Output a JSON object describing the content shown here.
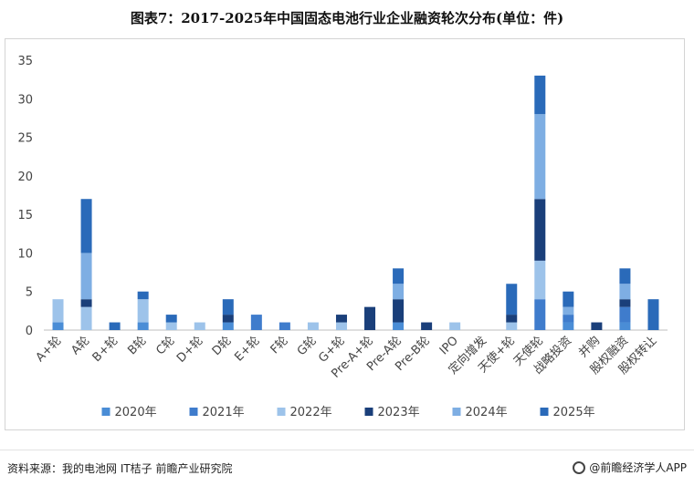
{
  "title": "图表7：2017-2025年中国固态电池行业企业融资轮次分布(单位：件)",
  "source": "资料来源：我的电池网 IT桔子 前瞻产业研究院",
  "brand": "@前瞻经济学人APP",
  "chart_data": {
    "type": "bar",
    "stacked": true,
    "categories": [
      "A+轮",
      "A轮",
      "B+轮",
      "B轮",
      "C轮",
      "D+轮",
      "D轮",
      "E+轮",
      "F轮",
      "G轮",
      "G+轮",
      "Pre-A+轮",
      "Pre-A轮",
      "Pre-B轮",
      "IPO",
      "定向增发",
      "天使+轮",
      "天使轮",
      "战略投资",
      "并购",
      "股权融资",
      "股权转让"
    ],
    "series": [
      {
        "name": "2020年",
        "color": "#4a8dd6",
        "values": [
          1,
          0,
          0,
          1,
          0,
          0,
          1,
          0,
          0,
          0,
          0,
          0,
          1,
          0,
          0,
          0,
          0,
          0,
          1,
          0,
          1,
          0
        ]
      },
      {
        "name": "2021年",
        "color": "#3f7ccc",
        "values": [
          0,
          0,
          0,
          0,
          0,
          0,
          0,
          2,
          1,
          0,
          0,
          0,
          0,
          0,
          0,
          0,
          0,
          4,
          1,
          0,
          2,
          0
        ]
      },
      {
        "name": "2022年",
        "color": "#9dc3ea",
        "values": [
          3,
          3,
          0,
          3,
          1,
          1,
          0,
          0,
          0,
          1,
          1,
          0,
          0,
          0,
          1,
          0,
          1,
          5,
          0,
          0,
          0,
          0
        ]
      },
      {
        "name": "2023年",
        "color": "#1a3f7a",
        "values": [
          0,
          1,
          0,
          0,
          0,
          0,
          1,
          0,
          0,
          0,
          1,
          3,
          3,
          1,
          0,
          0,
          1,
          8,
          0,
          1,
          1,
          0
        ]
      },
      {
        "name": "2024年",
        "color": "#7eaee3",
        "values": [
          0,
          6,
          0,
          0,
          0,
          0,
          0,
          0,
          0,
          0,
          0,
          0,
          2,
          0,
          0,
          0,
          0,
          11,
          1,
          0,
          2,
          0
        ]
      },
      {
        "name": "2025年",
        "color": "#2a6ab9",
        "values": [
          0,
          7,
          1,
          1,
          1,
          0,
          2,
          0,
          0,
          0,
          0,
          0,
          2,
          0,
          0,
          0,
          4,
          5,
          2,
          0,
          2,
          4
        ]
      }
    ],
    "ylim": [
      0,
      35
    ],
    "yticks": [
      0,
      5,
      10,
      15,
      20,
      25,
      30,
      35
    ],
    "grid": false,
    "legend_position": "bottom"
  }
}
